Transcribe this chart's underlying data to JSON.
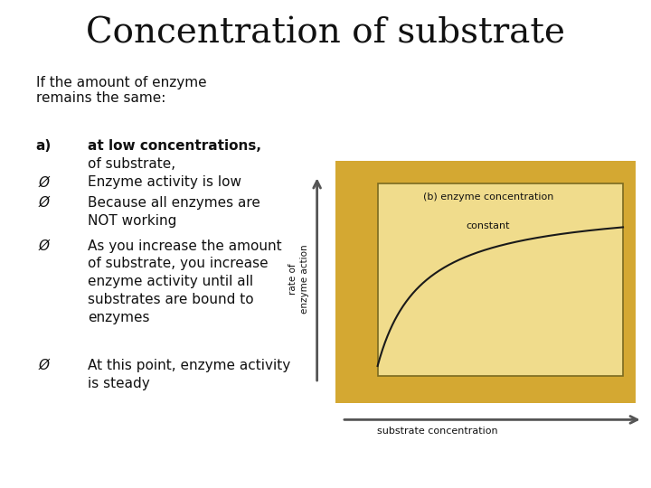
{
  "title": "Concentration of substrate",
  "title_fontsize": 28,
  "title_font": "serif",
  "bg_color": "#ffffff",
  "subtitle": "If the amount of enzyme\nremains the same:",
  "subtitle_fontsize": 11,
  "body_fontsize": 11,
  "graph": {
    "bg_color": "#e8c84a",
    "outer_bg": "#d4a832",
    "inner_bg": "#f0dc8c",
    "border_color": "#7a6a20",
    "label_b_line1": "(b) enzyme concentration",
    "label_b_line2": "    constant",
    "xlabel": "substrate concentration",
    "ylabel_line1": "rate of",
    "ylabel_line2": "enzyme action",
    "curve_color": "#1a1a1a"
  },
  "arrow_color": "#555555",
  "text_color": "#111111"
}
